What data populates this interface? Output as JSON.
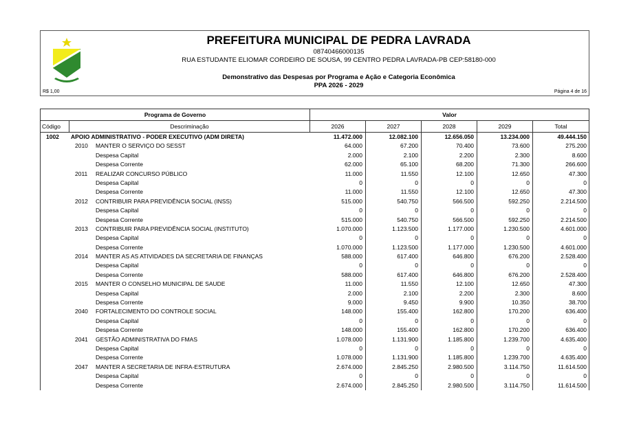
{
  "header": {
    "title": "PREFEITURA MUNICIPAL DE PEDRA LAVRADA",
    "cnpj": "08740466000135",
    "address": "RUA ESTUDANTE ELIOMAR CORDEIRO DE SOUSA, 99 CENTRO  PEDRA LAVRADA-PB  CEP:58180-000",
    "report_title": "Demonstrativo das Despesas por Programa e Ação e Categoria Econômica",
    "period": "PPA 2026 - 2029",
    "currency": "R$ 1,00",
    "page": "Página 4 de 16"
  },
  "table": {
    "group_program": "Programa de Governo",
    "group_value": "Valor",
    "col_code": "Código",
    "col_desc": "Descriminação",
    "years": [
      "2026",
      "2027",
      "2028",
      "2029"
    ],
    "col_total": "Total",
    "rows": [
      {
        "level": 0,
        "code": "1002",
        "desc": "APOIO ADMINISTRATIVO - PODER EXECUTIVO (ADM DIRETA)",
        "v": [
          "11.472.000",
          "12.082.100",
          "12.656.050",
          "13.234.000",
          "49.444.150"
        ]
      },
      {
        "level": 1,
        "code": "2010",
        "desc": "MANTER O SERVIÇO DO SESST",
        "v": [
          "64.000",
          "67.200",
          "70.400",
          "73.600",
          "275.200"
        ]
      },
      {
        "level": 2,
        "code": "",
        "desc": "Despesa Capital",
        "v": [
          "2.000",
          "2.100",
          "2.200",
          "2.300",
          "8.600"
        ]
      },
      {
        "level": 2,
        "code": "",
        "desc": "Despesa Corrente",
        "v": [
          "62.000",
          "65.100",
          "68.200",
          "71.300",
          "266.600"
        ]
      },
      {
        "level": 1,
        "code": "2011",
        "desc": "REALIZAR CONCURSO PÚBLICO",
        "v": [
          "11.000",
          "11.550",
          "12.100",
          "12.650",
          "47.300"
        ]
      },
      {
        "level": 2,
        "code": "",
        "desc": "Despesa Capital",
        "v": [
          "0",
          "0",
          "0",
          "0",
          "0"
        ]
      },
      {
        "level": 2,
        "code": "",
        "desc": "Despesa Corrente",
        "v": [
          "11.000",
          "11.550",
          "12.100",
          "12.650",
          "47.300"
        ]
      },
      {
        "level": 1,
        "code": "2012",
        "desc": "CONTRIBUIR PARA PREVIDÊNCIA SOCIAL (INSS)",
        "v": [
          "515.000",
          "540.750",
          "566.500",
          "592.250",
          "2.214.500"
        ]
      },
      {
        "level": 2,
        "code": "",
        "desc": "Despesa Capital",
        "v": [
          "0",
          "0",
          "0",
          "0",
          "0"
        ]
      },
      {
        "level": 2,
        "code": "",
        "desc": "Despesa Corrente",
        "v": [
          "515.000",
          "540.750",
          "566.500",
          "592.250",
          "2.214.500"
        ]
      },
      {
        "level": 1,
        "code": "2013",
        "desc": "CONTRIBUIR PARA PREVIDÊNCIA SOCIAL (INSTITUTO)",
        "v": [
          "1.070.000",
          "1.123.500",
          "1.177.000",
          "1.230.500",
          "4.601.000"
        ]
      },
      {
        "level": 2,
        "code": "",
        "desc": "Despesa Capital",
        "v": [
          "0",
          "0",
          "0",
          "0",
          "0"
        ]
      },
      {
        "level": 2,
        "code": "",
        "desc": "Despesa Corrente",
        "v": [
          "1.070.000",
          "1.123.500",
          "1.177.000",
          "1.230.500",
          "4.601.000"
        ]
      },
      {
        "level": 1,
        "code": "2014",
        "desc": "MANTER AS AS ATIVIDADES DA SECRETARIA DE FINANÇAS",
        "v": [
          "588.000",
          "617.400",
          "646.800",
          "676.200",
          "2.528.400"
        ]
      },
      {
        "level": 2,
        "code": "",
        "desc": "Despesa Capital",
        "v": [
          "0",
          "0",
          "0",
          "0",
          "0"
        ]
      },
      {
        "level": 2,
        "code": "",
        "desc": "Despesa Corrente",
        "v": [
          "588.000",
          "617.400",
          "646.800",
          "676.200",
          "2.528.400"
        ]
      },
      {
        "level": 1,
        "code": "2015",
        "desc": "MANTER O CONSELHO MUNICIPAL DE SAUDE",
        "v": [
          "11.000",
          "11.550",
          "12.100",
          "12.650",
          "47.300"
        ]
      },
      {
        "level": 2,
        "code": "",
        "desc": "Despesa Capital",
        "v": [
          "2.000",
          "2.100",
          "2.200",
          "2.300",
          "8.600"
        ]
      },
      {
        "level": 2,
        "code": "",
        "desc": "Despesa Corrente",
        "v": [
          "9.000",
          "9.450",
          "9.900",
          "10.350",
          "38.700"
        ]
      },
      {
        "level": 1,
        "code": "2040",
        "desc": "FORTALECIMENTO DO CONTROLE SOCIAL",
        "v": [
          "148.000",
          "155.400",
          "162.800",
          "170.200",
          "636.400"
        ]
      },
      {
        "level": 2,
        "code": "",
        "desc": "Despesa Capital",
        "v": [
          "0",
          "0",
          "0",
          "0",
          "0"
        ]
      },
      {
        "level": 2,
        "code": "",
        "desc": "Despesa Corrente",
        "v": [
          "148.000",
          "155.400",
          "162.800",
          "170.200",
          "636.400"
        ]
      },
      {
        "level": 1,
        "code": "2041",
        "desc": "GESTÃO ADMINISTRATIVA DO FMAS",
        "v": [
          "1.078.000",
          "1.131.900",
          "1.185.800",
          "1.239.700",
          "4.635.400"
        ]
      },
      {
        "level": 2,
        "code": "",
        "desc": "Despesa Capital",
        "v": [
          "0",
          "0",
          "0",
          "0",
          "0"
        ]
      },
      {
        "level": 2,
        "code": "",
        "desc": "Despesa Corrente",
        "v": [
          "1.078.000",
          "1.131.900",
          "1.185.800",
          "1.239.700",
          "4.635.400"
        ]
      },
      {
        "level": 1,
        "code": "2047",
        "desc": "MANTER A SECRETARIA DE INFRA-ESTRUTURA",
        "v": [
          "2.674.000",
          "2.845.250",
          "2.980.500",
          "3.114.750",
          "11.614.500"
        ]
      },
      {
        "level": 2,
        "code": "",
        "desc": "Despesa Capital",
        "v": [
          "0",
          "0",
          "0",
          "0",
          "0"
        ]
      },
      {
        "level": 2,
        "code": "",
        "desc": "Despesa Corrente",
        "v": [
          "2.674.000",
          "2.845.250",
          "2.980.500",
          "3.114.750",
          "11.614.500"
        ]
      }
    ]
  }
}
